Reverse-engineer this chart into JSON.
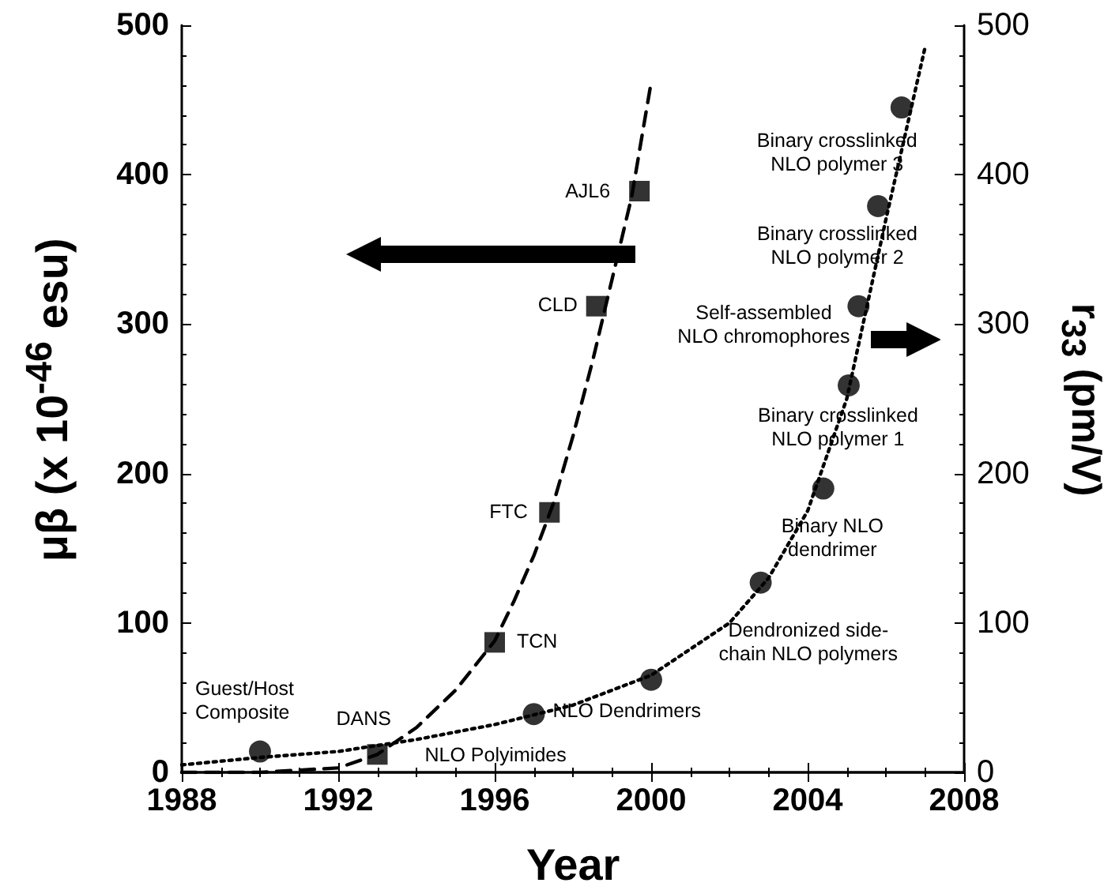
{
  "chart_data": {
    "type": "scatter",
    "xlabel": "Year",
    "ylabel": "μβ (x 10$^{-46}$ esu)",
    "y2label": "r$_{33}$ (pm/V)",
    "xlim": [
      1988,
      2008
    ],
    "xticks": [
      1988,
      1992,
      1996,
      2000,
      2004,
      2008
    ],
    "ylim": [
      0,
      500
    ],
    "yticks": [
      0,
      100,
      200,
      300,
      400,
      500
    ],
    "y2lim": [
      0,
      500
    ],
    "y2ticks": [
      0,
      100,
      200,
      300,
      400,
      500
    ],
    "grid": false,
    "series": [
      {
        "marker": "square",
        "color": "#000000",
        "x": [
          1993,
          1996,
          1997.4,
          1998.6,
          1999.7
        ],
        "values": [
          12,
          87,
          174,
          312,
          389
        ]
      },
      {
        "marker": "circle",
        "color": "#000000",
        "x": [
          1990,
          1997,
          2000,
          2002.8,
          2004.4,
          2005.05,
          2005.3,
          2005.8,
          2006.4
        ],
        "values": [
          14,
          39,
          62,
          127,
          190,
          259,
          312,
          379,
          445
        ]
      },
      {
        "type": "line",
        "marker": "none",
        "line_style": "dashed",
        "color": "#000000",
        "x": [
          1988,
          1990,
          1992,
          1993,
          1994,
          1995,
          1996,
          1996.5,
          1997,
          1997.5,
          1998,
          1998.5,
          1999,
          1999.5,
          2000
        ],
        "values": [
          0,
          0,
          3,
          12,
          30,
          55,
          88,
          115,
          145,
          180,
          225,
          275,
          330,
          385,
          462
        ]
      },
      {
        "type": "line",
        "marker": "none",
        "line_style": "dotted",
        "color": "#000000",
        "x": [
          1988,
          1990,
          1992,
          1994,
          1996,
          1998,
          2000,
          2002,
          2003,
          2004,
          2005,
          2006,
          2007
        ],
        "values": [
          5,
          10,
          14,
          22,
          32,
          45,
          65,
          100,
          130,
          175,
          250,
          370,
          485
        ]
      }
    ],
    "annotations": [
      {
        "text": "Guest/Host\nComposite",
        "x": 1990,
        "y": 14
      },
      {
        "text": "DANS",
        "x": 1993,
        "y": 12
      },
      {
        "text": "TCN",
        "x": 1996,
        "y": 87
      },
      {
        "text": "FTC",
        "x": 1997.4,
        "y": 174
      },
      {
        "text": "CLD",
        "x": 1998.6,
        "y": 312
      },
      {
        "text": "AJL6",
        "x": 1999.7,
        "y": 389
      },
      {
        "text": "NLO Polyimides",
        "x": 1993,
        "y": 15
      },
      {
        "text": "NLO Dendrimers",
        "x": 1997,
        "y": 39
      },
      {
        "text": "Dendronized side-\nchain NLO polymers",
        "x": 2002.8,
        "y": 127
      },
      {
        "text": "Binary NLO\ndendrimer",
        "x": 2004.4,
        "y": 190
      },
      {
        "text": "Binary crosslinked\nNLO polymer 1",
        "x": 2005.05,
        "y": 259
      },
      {
        "text": "Self-assembled\nNLO chromophores",
        "x": 2005.3,
        "y": 312
      },
      {
        "text": "Binary crosslinked\nNLO polymer 2",
        "x": 2005.8,
        "y": 379
      },
      {
        "text": "Binary crosslinked\nNLO polymer 3",
        "x": 2006.4,
        "y": 445
      }
    ]
  }
}
